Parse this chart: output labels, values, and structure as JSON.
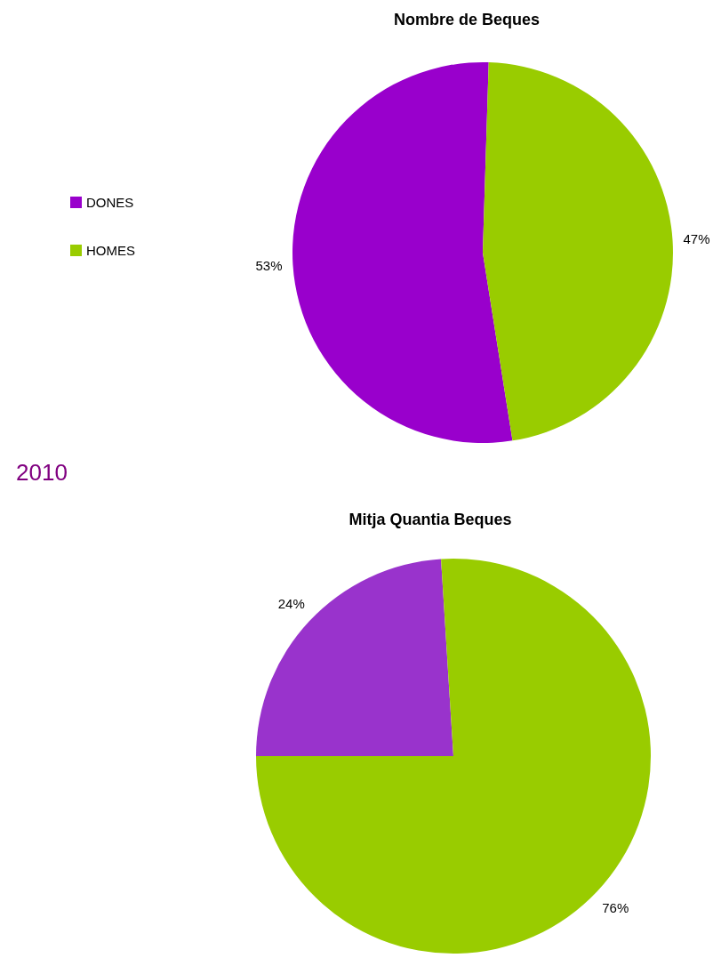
{
  "chart_data": [
    {
      "type": "pie",
      "title": "Nombre de Beques",
      "categories": [
        "DONES",
        "HOMES"
      ],
      "values": [
        53,
        47
      ],
      "colors": [
        "#9900cc",
        "#99cc00"
      ],
      "value_labels": [
        "53%",
        "47%"
      ],
      "legend": "left"
    },
    {
      "type": "pie",
      "title": "Mitja Quantia Beques",
      "categories": [
        null,
        null
      ],
      "values": [
        24,
        76
      ],
      "colors": [
        "#9933cc",
        "#99cc00"
      ],
      "value_labels": [
        "24%",
        "76%"
      ],
      "annotations": [
        "2010"
      ]
    }
  ]
}
